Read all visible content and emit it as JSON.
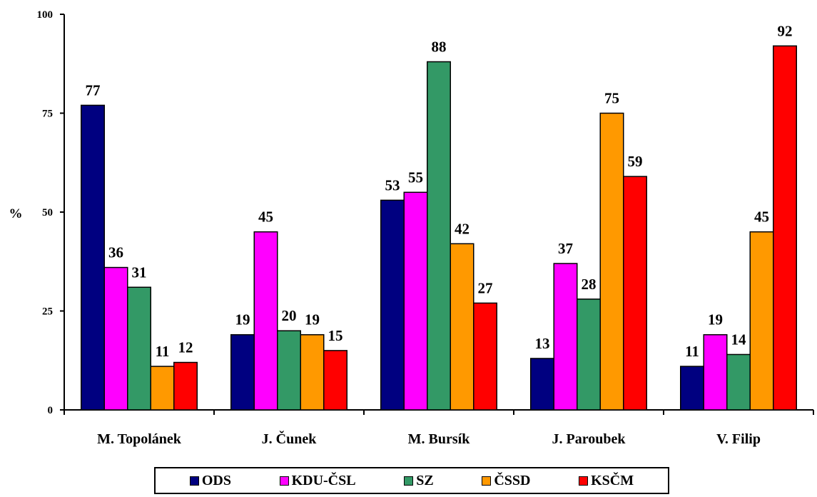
{
  "chart_data": {
    "type": "bar",
    "ylabel": "%",
    "ylim": [
      0,
      100
    ],
    "yticks": [
      "0",
      "25",
      "50",
      "75",
      "100"
    ],
    "grid": false,
    "legend_position": "bottom",
    "categories": [
      "M. Topolánek",
      "J. Čunek",
      "M. Bursík",
      "J. Paroubek",
      "V. Filip"
    ],
    "series": [
      {
        "name": "ODS",
        "color": "#000080",
        "values": [
          77,
          19,
          53,
          13,
          11
        ]
      },
      {
        "name": "KDU-ČSL",
        "color": "#ff00ff",
        "values": [
          36,
          45,
          55,
          37,
          19
        ]
      },
      {
        "name": "SZ",
        "color": "#339966",
        "values": [
          31,
          20,
          88,
          28,
          14
        ]
      },
      {
        "name": "ČSSD",
        "color": "#ff9900",
        "values": [
          11,
          19,
          42,
          75,
          45
        ]
      },
      {
        "name": "KSČM",
        "color": "#ff0000",
        "values": [
          12,
          15,
          27,
          59,
          92
        ]
      }
    ]
  }
}
